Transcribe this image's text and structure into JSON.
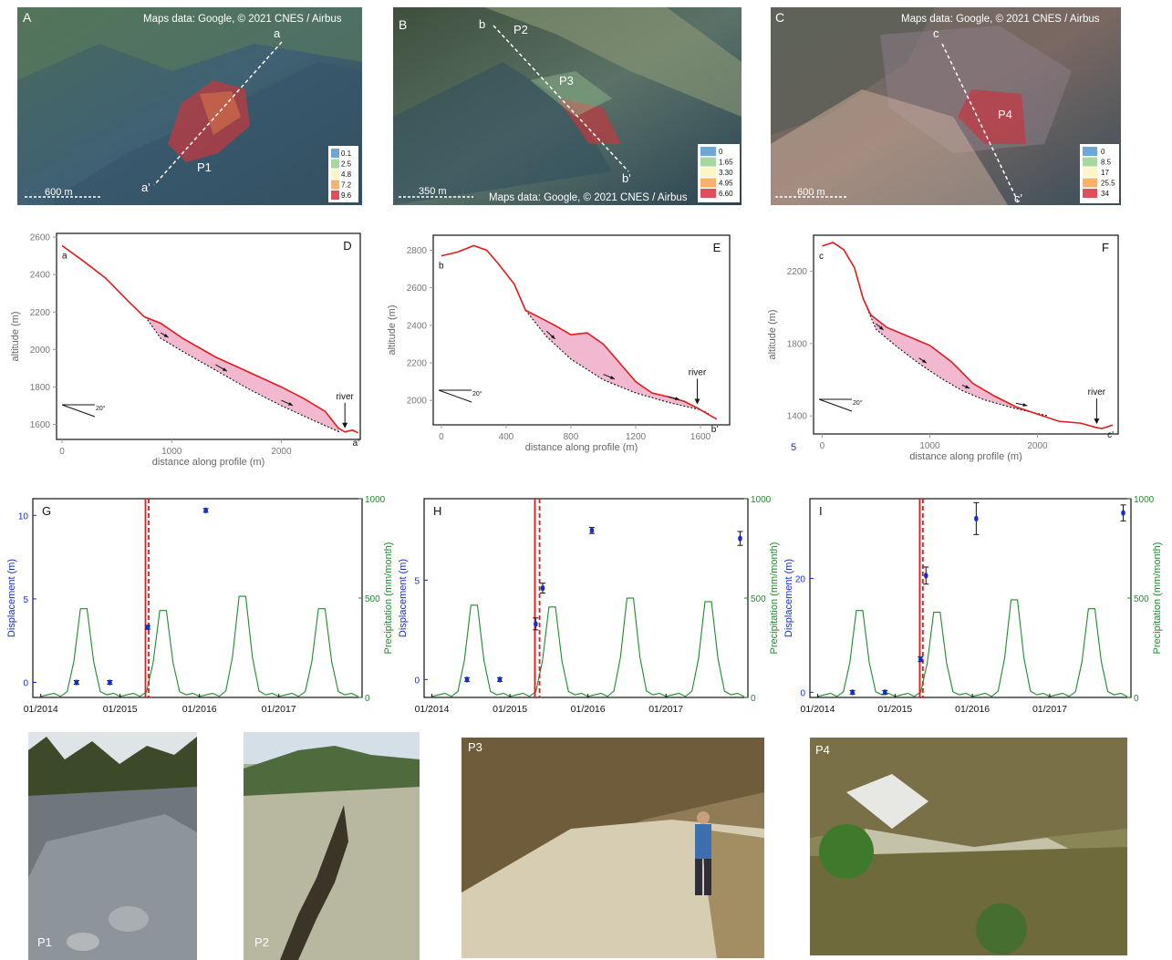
{
  "maps": [
    {
      "letter": "A",
      "credit": "Maps data: Google, © 2021 CNES / Airbus",
      "scale_label": "600 m",
      "profile_start": "a",
      "profile_end": "a'",
      "photo_points": [
        "P1"
      ],
      "legend": [
        "0.1",
        "2.5",
        "4.8",
        "7.2",
        "9.6"
      ]
    },
    {
      "letter": "B",
      "credit": "Maps data: Google, © 2021 CNES / Airbus",
      "scale_label": "350 m",
      "profile_start": "b",
      "profile_end": "b'",
      "photo_points": [
        "P2",
        "P3"
      ],
      "legend": [
        "0",
        "1.65",
        "3.30",
        "4.95",
        "6.60"
      ]
    },
    {
      "letter": "C",
      "credit": "Maps data: Google, © 2021 CNES / Airbus",
      "scale_label": "600 m",
      "profile_start": "c",
      "profile_end": "c'",
      "photo_points": [
        "P4"
      ],
      "legend": [
        "0",
        "8.5",
        "17",
        "25.5",
        "34"
      ]
    }
  ],
  "legend_colors": [
    "#6ea6d6",
    "#a6d79c",
    "#fbf6c4",
    "#f8b26c",
    "#e0505b"
  ],
  "stray_label": "5",
  "chart_data": [
    {
      "panel": "D",
      "type": "line",
      "xlabel": "distance along profile (m)",
      "ylabel": "altitude (m)",
      "xlim": [
        -50,
        2720
      ],
      "ylim": [
        1520,
        2620
      ],
      "xticks": [
        0,
        1000,
        2000
      ],
      "yticks": [
        1600,
        1800,
        2000,
        2200,
        2400,
        2600
      ],
      "start_label": "a",
      "end_label": "a'",
      "river_label": "river",
      "slope_label": "20°",
      "surface": {
        "x": [
          0,
          200,
          400,
          600,
          750,
          900,
          1100,
          1400,
          1700,
          2000,
          2200,
          2400,
          2520,
          2580,
          2650,
          2700
        ],
        "y": [
          2555,
          2470,
          2380,
          2260,
          2175,
          2140,
          2060,
          1960,
          1880,
          1800,
          1740,
          1670,
          1580,
          1560,
          1570,
          1555
        ]
      },
      "failure_surface": {
        "x": [
          760,
          900,
          1100,
          1400,
          1700,
          2000,
          2300,
          2530
        ],
        "y": [
          2175,
          2060,
          1990,
          1890,
          1790,
          1700,
          1620,
          1560
        ]
      }
    },
    {
      "panel": "E",
      "type": "line",
      "xlabel": "distance along profile (m)",
      "ylabel": "altitude (m)",
      "xlim": [
        -50,
        1780
      ],
      "ylim": [
        1870,
        2880
      ],
      "xticks": [
        0,
        400,
        800,
        1200,
        1600
      ],
      "yticks": [
        2000,
        2200,
        2400,
        2600,
        2800
      ],
      "start_label": "b",
      "end_label": "b'",
      "river_label": "river",
      "slope_label": "20°",
      "surface": {
        "x": [
          0,
          100,
          200,
          280,
          350,
          450,
          520,
          600,
          700,
          800,
          900,
          1000,
          1100,
          1200,
          1300,
          1400,
          1500,
          1580,
          1640,
          1700
        ],
        "y": [
          2770,
          2790,
          2825,
          2800,
          2730,
          2620,
          2480,
          2445,
          2400,
          2350,
          2360,
          2300,
          2200,
          2100,
          2040,
          2020,
          1995,
          1960,
          1930,
          1900
        ]
      },
      "failure_surface": {
        "x": [
          520,
          650,
          800,
          1000,
          1200,
          1400,
          1600,
          1650
        ],
        "y": [
          2480,
          2340,
          2220,
          2110,
          2040,
          1990,
          1950,
          1930
        ]
      }
    },
    {
      "panel": "F",
      "type": "line",
      "xlabel": "distance along profile (m)",
      "ylabel": "altitude (m)",
      "xlim": [
        -80,
        2750
      ],
      "ylim": [
        1300,
        2400
      ],
      "xticks": [
        0,
        1000,
        2000
      ],
      "yticks": [
        1400,
        1800,
        2200
      ],
      "start_label": "c",
      "end_label": "c'",
      "river_label": "river",
      "slope_label": "20°",
      "surface": {
        "x": [
          0,
          100,
          200,
          300,
          380,
          450,
          600,
          800,
          1000,
          1200,
          1300,
          1400,
          1600,
          1800,
          2000,
          2200,
          2400,
          2550,
          2600,
          2700
        ],
        "y": [
          2340,
          2360,
          2320,
          2220,
          2050,
          1960,
          1890,
          1840,
          1790,
          1700,
          1640,
          1580,
          1510,
          1450,
          1410,
          1370,
          1360,
          1335,
          1330,
          1350
        ]
      },
      "failure_surface": {
        "x": [
          380,
          500,
          700,
          900,
          1100,
          1300,
          1500,
          1800,
          2100
        ],
        "y": [
          2050,
          1880,
          1780,
          1690,
          1610,
          1540,
          1490,
          1440,
          1400
        ]
      }
    },
    {
      "panel": "G",
      "type": "scatter+line",
      "ylabel": "Displacement (m)",
      "y2label": "Precipitation (mm/month)",
      "xticks": [
        "01/2014",
        "01/2015",
        "01/2016",
        "01/2017"
      ],
      "ylim": [
        -0.9,
        11
      ],
      "y2lim": [
        0,
        1000
      ],
      "yticks": [
        0,
        5,
        10
      ],
      "y2ticks": [
        0,
        500,
        1000
      ],
      "events": [
        {
          "time": 2015.32,
          "style": "solid"
        },
        {
          "time": 2015.36,
          "style": "dashed"
        }
      ],
      "displacement": {
        "t": [
          2014.45,
          2014.87,
          2015.35,
          2016.08
        ],
        "d": [
          0,
          0,
          3.3,
          10.3
        ],
        "err": [
          0.05,
          0.05,
          0.1,
          0.08
        ]
      },
      "precipitation_peaks": [
        500,
        490,
        570,
        500
      ]
    },
    {
      "panel": "H",
      "type": "scatter+line",
      "ylabel": "Displacement (m)",
      "y2label": "Precipitation (mm/month)",
      "xticks": [
        "01/2014",
        "01/2015",
        "01/2016",
        "01/2017"
      ],
      "ylim": [
        -0.9,
        9.1
      ],
      "y2lim": [
        0,
        1000
      ],
      "yticks": [
        0,
        5
      ],
      "y2ticks": [
        0,
        500,
        1000
      ],
      "events": [
        {
          "time": 2015.32,
          "style": "solid"
        },
        {
          "time": 2015.38,
          "style": "dashed"
        }
      ],
      "displacement": {
        "t": [
          2014.45,
          2014.87,
          2015.33,
          2015.42,
          2016.05,
          2017.95
        ],
        "d": [
          0,
          0,
          2.8,
          4.6,
          7.5,
          7.1
        ],
        "err": [
          0.05,
          0.05,
          0.3,
          0.25,
          0.15,
          0.35
        ]
      },
      "precipitation_peaks": [
        520,
        510,
        560,
        540
      ]
    },
    {
      "panel": "I",
      "type": "scatter+line",
      "ylabel": "Displacement (m)",
      "y2label": "Precipitation (mm/month)",
      "xticks": [
        "01/2014",
        "01/2015",
        "01/2016",
        "01/2017"
      ],
      "ylim": [
        -0.9,
        34
      ],
      "y2lim": [
        0,
        1000
      ],
      "yticks": [
        0,
        20
      ],
      "y2ticks": [
        0,
        500,
        1000
      ],
      "events": [
        {
          "time": 2015.32,
          "style": "solid"
        },
        {
          "time": 2015.36,
          "style": "dashed"
        }
      ],
      "displacement": {
        "t": [
          2014.45,
          2014.87,
          2015.33,
          2015.4,
          2016.05,
          2017.95
        ],
        "d": [
          0,
          0,
          5.8,
          20.5,
          30.5,
          31.5
        ],
        "err": [
          0.2,
          0.2,
          0.4,
          1.5,
          2.8,
          1.4
        ]
      },
      "precipitation_peaks": [
        490,
        480,
        550,
        500
      ]
    }
  ],
  "photos": [
    {
      "label": "P1"
    },
    {
      "label": "P2"
    },
    {
      "label": "P3"
    },
    {
      "label": "P4"
    }
  ]
}
